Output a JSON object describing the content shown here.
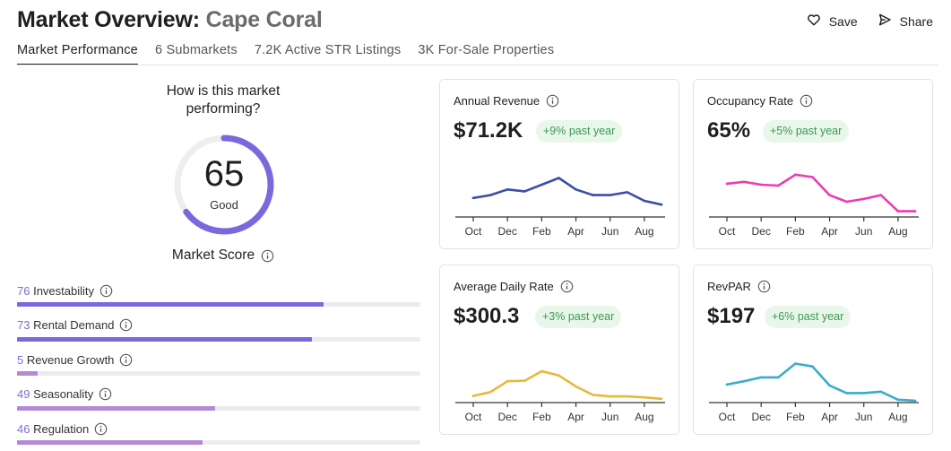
{
  "header": {
    "title_prefix": "Market Overview:",
    "market_name": "Cape Coral",
    "save_label": "Save",
    "share_label": "Share"
  },
  "tabs": [
    {
      "label": "Market Performance",
      "active": true
    },
    {
      "label": "6 Submarkets",
      "active": false
    },
    {
      "label": "7.2K Active STR Listings",
      "active": false
    },
    {
      "label": "3K For-Sale Properties",
      "active": false
    }
  ],
  "score": {
    "question": "How is this market performing?",
    "value": "65",
    "rating": "Good",
    "label": "Market Score",
    "gauge_fraction": 0.65,
    "gauge_color": "#7b68dd"
  },
  "metrics": [
    {
      "value": "76",
      "label": "Investability",
      "fraction": 0.76,
      "color": "#7b68dd"
    },
    {
      "value": "73",
      "label": "Rental Demand",
      "fraction": 0.73,
      "color": "#7b68dd"
    },
    {
      "value": "5",
      "label": "Revenue Growth",
      "fraction": 0.05,
      "color": "#b38ad6"
    },
    {
      "value": "49",
      "label": "Seasonality",
      "fraction": 0.49,
      "color": "#b38ad6"
    },
    {
      "value": "46",
      "label": "Regulation",
      "fraction": 0.46,
      "color": "#b38ad6"
    }
  ],
  "cards": [
    {
      "title": "Annual Revenue",
      "value": "$71.2K",
      "badge": "+9% past year"
    },
    {
      "title": "Occupancy Rate",
      "value": "65%",
      "badge": "+5% past year"
    },
    {
      "title": "Average Daily Rate",
      "value": "$300.3",
      "badge": "+3% past year"
    },
    {
      "title": "RevPAR",
      "value": "$197",
      "badge": "+6% past year"
    }
  ],
  "chart_data": [
    {
      "type": "line",
      "title": "Annual Revenue",
      "color": "#3b4ea8",
      "x_labels": [
        "Oct",
        "Dec",
        "Feb",
        "Apr",
        "Jun",
        "Aug"
      ],
      "values": [
        4.0,
        4.6,
        5.8,
        5.4,
        6.8,
        8.2,
        5.8,
        4.6,
        4.6,
        5.2,
        3.4,
        2.6
      ]
    },
    {
      "type": "line",
      "title": "Occupancy Rate",
      "color": "#e93cb6",
      "x_labels": [
        "Oct",
        "Dec",
        "Feb",
        "Apr",
        "Jun",
        "Aug"
      ],
      "values": [
        7.0,
        7.4,
        6.8,
        6.6,
        8.9,
        8.4,
        4.6,
        3.2,
        3.8,
        4.6,
        1.2,
        1.2
      ]
    },
    {
      "type": "line",
      "title": "Average Daily Rate",
      "color": "#e6b93a",
      "x_labels": [
        "Oct",
        "Dec",
        "Feb",
        "Apr",
        "Jun",
        "Aug"
      ],
      "values": [
        1.4,
        2.2,
        4.5,
        4.6,
        6.6,
        5.7,
        3.4,
        1.6,
        1.3,
        1.3,
        1.1,
        0.8
      ]
    },
    {
      "type": "line",
      "title": "RevPAR",
      "color": "#3aaccc",
      "x_labels": [
        "Oct",
        "Dec",
        "Feb",
        "Apr",
        "Jun",
        "Aug"
      ],
      "values": [
        3.8,
        4.5,
        5.3,
        5.3,
        8.2,
        7.6,
        3.6,
        2.0,
        2.0,
        2.3,
        0.6,
        0.4
      ]
    }
  ]
}
